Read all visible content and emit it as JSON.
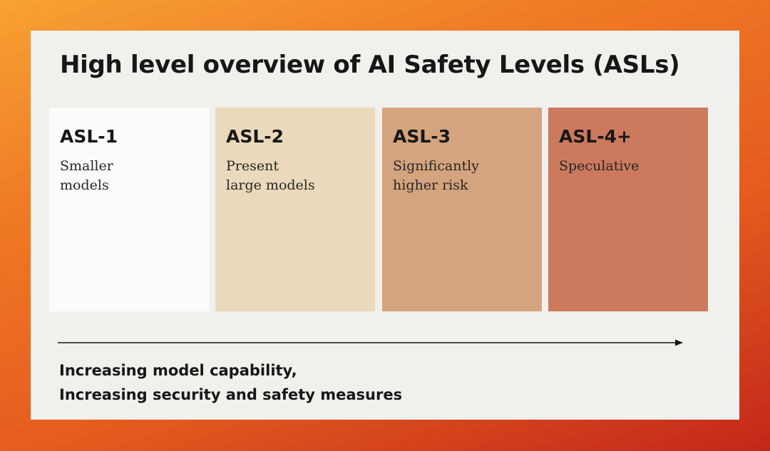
{
  "title": "High level overview of AI Safety Levels (ASLs)",
  "levels": [
    {
      "name": "ASL-1",
      "description": "Smaller\nmodels",
      "color": "#fbfbf9"
    },
    {
      "name": "ASL-2",
      "description": "Present\nlarge models",
      "color": "#eadabb"
    },
    {
      "name": "ASL-3",
      "description": "Significantly\nhigher risk",
      "color": "#d4a47e"
    },
    {
      "name": "ASL-4+",
      "description": "Speculative",
      "color": "#cc7a5e"
    }
  ],
  "caption": {
    "line1": "Increasing model capability,",
    "line2": "Increasing security and safety measures"
  },
  "colors": {
    "background_gradient": [
      "#f7a233",
      "#ef7a25",
      "#e45a1e",
      "#c2271a"
    ],
    "card": "#f0f0ec",
    "text": "#171717"
  }
}
